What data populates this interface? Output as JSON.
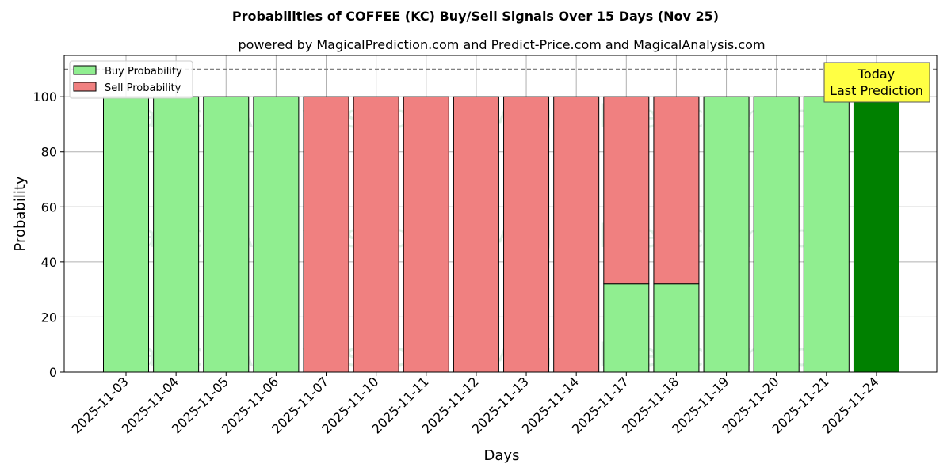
{
  "chart_data": {
    "type": "bar",
    "stacked": true,
    "title": "Probabilities of COFFEE (KC) Buy/Sell Signals Over 15 Days (Nov 25)",
    "subtitle": "powered by MagicalPrediction.com and Predict-Price.com and MagicalAnalysis.com",
    "xlabel": "Days",
    "ylabel": "Probability",
    "ylim": [
      0,
      115
    ],
    "yticks": [
      0,
      20,
      40,
      60,
      80,
      100
    ],
    "threshold": 110,
    "grid": true,
    "legend_position": "top-left",
    "categories": [
      "2025-11-03",
      "2025-11-04",
      "2025-11-05",
      "2025-11-06",
      "2025-11-07",
      "2025-11-10",
      "2025-11-11",
      "2025-11-12",
      "2025-11-13",
      "2025-11-14",
      "2025-11-17",
      "2025-11-18",
      "2025-11-19",
      "2025-11-20",
      "2025-11-21",
      "2025-11-24"
    ],
    "series": [
      {
        "name": "Buy Probability",
        "color": "#90ee90",
        "values": [
          100,
          100,
          100,
          100,
          0,
          0,
          0,
          0,
          0,
          0,
          32,
          32,
          100,
          100,
          100,
          100
        ]
      },
      {
        "name": "Sell Probability",
        "color": "#f08080",
        "values": [
          0,
          0,
          0,
          0,
          100,
          100,
          100,
          100,
          100,
          100,
          68,
          68,
          0,
          0,
          0,
          0
        ]
      }
    ],
    "highlight": {
      "index": 15,
      "color": "#008000"
    },
    "annotation": {
      "line1": "Today",
      "line2": "Last Prediction",
      "bg": "#ffff44"
    },
    "watermarks": [
      "MagicalAnalysis.com",
      "MagicalPrediction.com"
    ]
  }
}
